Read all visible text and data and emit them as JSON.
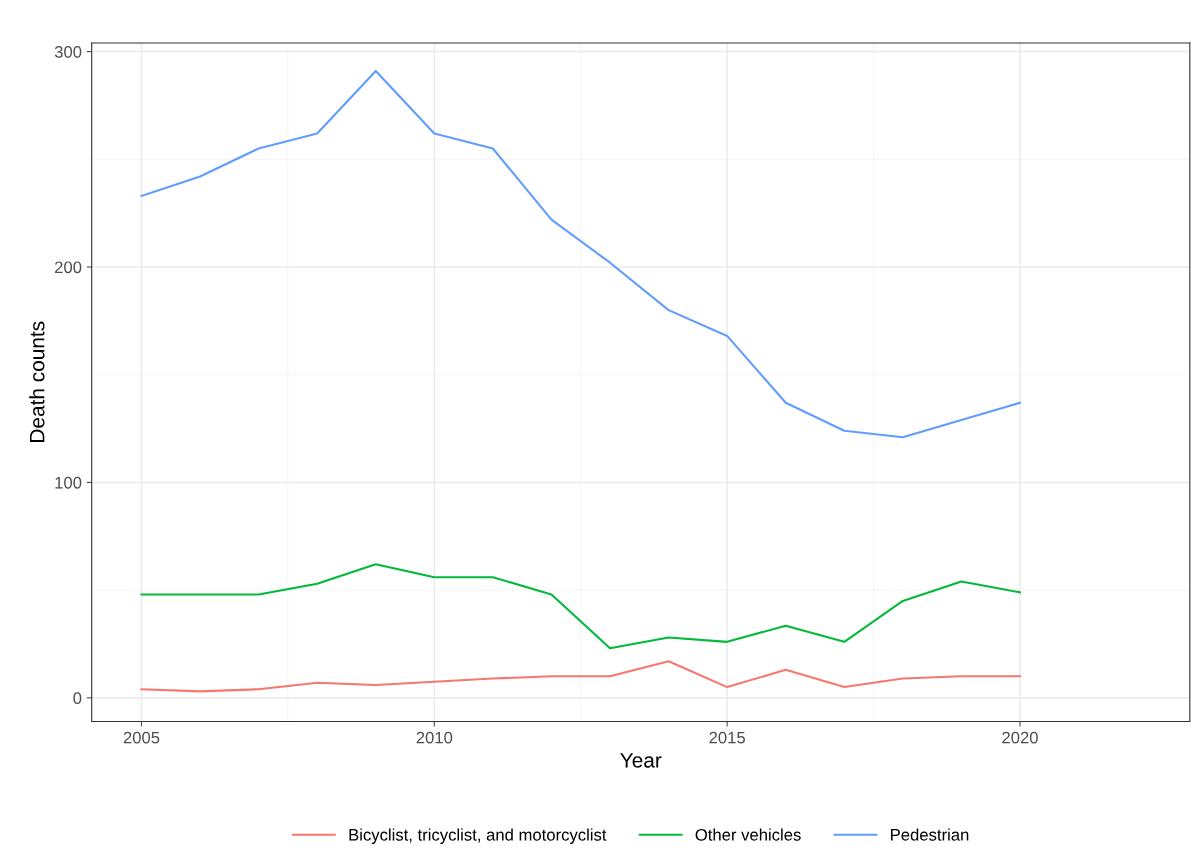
{
  "chart_data": {
    "type": "line",
    "xlabel": "Year",
    "ylabel": "Death counts",
    "x": [
      2005,
      2006,
      2007,
      2008,
      2009,
      2010,
      2011,
      2012,
      2013,
      2014,
      2015,
      2016,
      2017,
      2018,
      2019,
      2020
    ],
    "series": [
      {
        "name": "Bicyclist, tricyclist, and motorcyclist",
        "color": "#f8766d",
        "values": [
          4,
          3,
          4,
          7,
          6,
          7.5,
          9,
          10,
          10,
          17,
          5,
          13,
          5,
          9,
          10,
          10
        ]
      },
      {
        "name": "Other vehicles",
        "color": "#00ba38",
        "values": [
          48,
          48,
          48,
          53,
          62,
          56,
          56,
          48,
          23,
          28,
          26,
          33.5,
          26,
          45,
          54,
          49
        ]
      },
      {
        "name": "Pedestrian",
        "color": "#619cff",
        "values": [
          233,
          242,
          255,
          262,
          291,
          262,
          255,
          222,
          202,
          180,
          168,
          137,
          124,
          121,
          129,
          137
        ]
      }
    ],
    "xlim": [
      2004.15,
      2022.9
    ],
    "xticks": [
      2005,
      2010,
      2015,
      2020
    ],
    "ylim": [
      -11,
      304
    ],
    "yticks": [
      0,
      100,
      200,
      300
    ],
    "grid": true,
    "legend": "bottom",
    "marker": "none",
    "line_style": "solid"
  }
}
